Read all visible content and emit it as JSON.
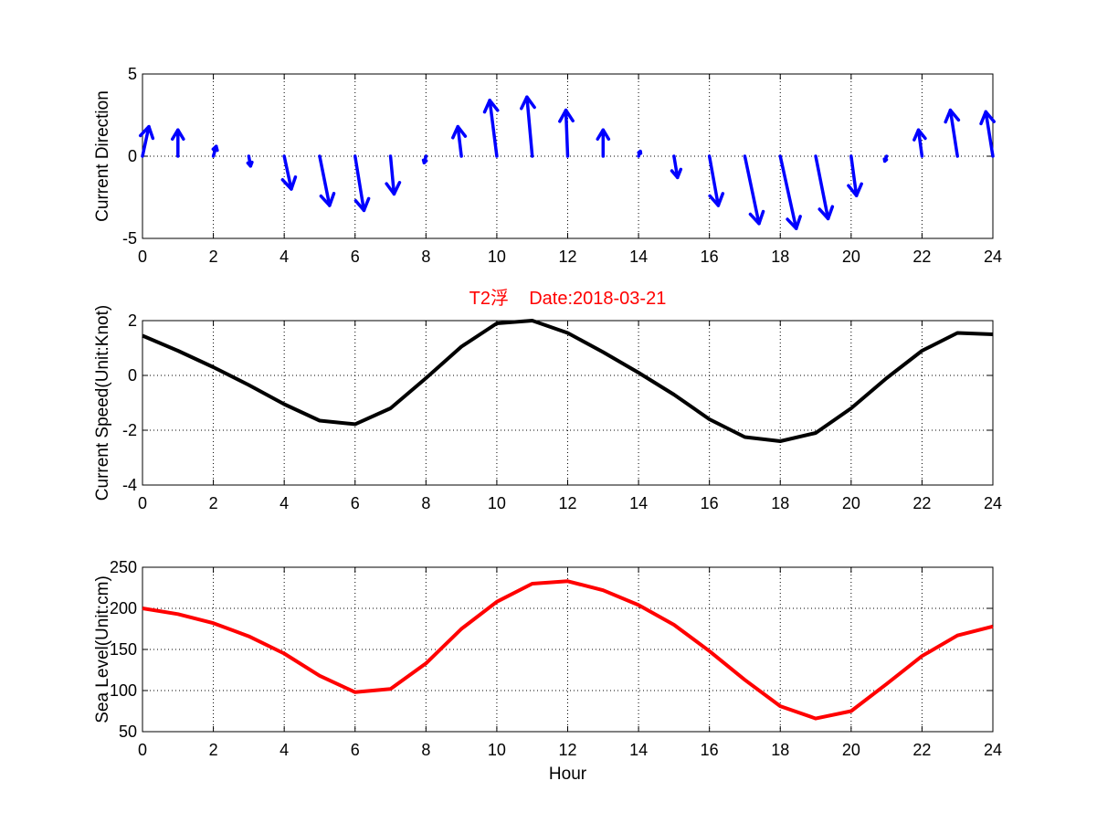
{
  "colors": {
    "direction": "#0000ff",
    "speed": "#000000",
    "sea_level": "#ff0000",
    "title": "#ff0000",
    "grid": "#000000"
  },
  "chart_data": [
    {
      "type": "quiver",
      "title": "",
      "xlabel": "",
      "ylabel": "Current Direction",
      "xlim": [
        0,
        24
      ],
      "ylim": [
        -5,
        5
      ],
      "xticks": [
        "0",
        "2",
        "4",
        "6",
        "8",
        "10",
        "12",
        "14",
        "16",
        "18",
        "20",
        "22",
        "24"
      ],
      "yticks": [
        "-5",
        "0",
        "5"
      ],
      "grid": true,
      "series": [
        {
          "x": [
            0,
            1,
            2,
            3,
            4,
            5,
            6,
            7,
            8,
            9,
            10,
            11,
            12,
            13,
            14,
            15,
            16,
            17,
            18,
            19,
            20,
            21,
            22,
            23,
            24
          ],
          "u": [
            0.18,
            0.0,
            0.08,
            0.05,
            0.2,
            0.28,
            0.25,
            0.1,
            -0.05,
            -0.1,
            -0.2,
            -0.15,
            -0.05,
            0.0,
            0.05,
            0.1,
            0.25,
            0.4,
            0.45,
            0.35,
            0.15,
            -0.05,
            -0.1,
            -0.2,
            -0.2
          ],
          "v": [
            1.8,
            1.6,
            0.6,
            -0.6,
            -2.0,
            -3.0,
            -3.3,
            -2.3,
            -0.4,
            1.8,
            3.4,
            3.6,
            2.8,
            1.6,
            0.3,
            -1.3,
            -3.0,
            -4.1,
            -4.4,
            -3.8,
            -2.4,
            -0.3,
            1.6,
            2.8,
            2.7
          ]
        }
      ]
    },
    {
      "type": "line",
      "title": "T2浮    Date:2018-03-21",
      "xlabel": "",
      "ylabel": "Current Speed(Unit:Knot)",
      "xlim": [
        0,
        24
      ],
      "ylim": [
        -4,
        2
      ],
      "xticks": [
        "0",
        "2",
        "4",
        "6",
        "8",
        "10",
        "12",
        "14",
        "16",
        "18",
        "20",
        "22",
        "24"
      ],
      "yticks": [
        "-4",
        "-2",
        "0",
        "2"
      ],
      "grid": true,
      "series": [
        {
          "x": [
            0,
            1,
            2,
            3,
            4,
            5,
            6,
            7,
            8,
            9,
            10,
            11,
            12,
            13,
            14,
            15,
            16,
            17,
            18,
            19,
            20,
            21,
            22,
            23,
            24
          ],
          "y": [
            1.45,
            0.9,
            0.3,
            -0.35,
            -1.05,
            -1.65,
            -1.78,
            -1.2,
            -0.1,
            1.05,
            1.9,
            2.0,
            1.55,
            0.85,
            0.1,
            -0.7,
            -1.6,
            -2.25,
            -2.4,
            -2.1,
            -1.2,
            -0.1,
            0.9,
            1.55,
            1.5
          ]
        }
      ]
    },
    {
      "type": "line",
      "title": "",
      "xlabel": "Hour",
      "ylabel": "Sea Level(Unit:cm)",
      "xlim": [
        0,
        24
      ],
      "ylim": [
        50,
        250
      ],
      "xticks": [
        "0",
        "2",
        "4",
        "6",
        "8",
        "10",
        "12",
        "14",
        "16",
        "18",
        "20",
        "22",
        "24"
      ],
      "yticks": [
        "50",
        "100",
        "150",
        "200",
        "250"
      ],
      "grid": true,
      "series": [
        {
          "x": [
            0,
            1,
            2,
            3,
            4,
            5,
            6,
            7,
            8,
            9,
            10,
            11,
            12,
            13,
            14,
            15,
            16,
            17,
            18,
            19,
            20,
            21,
            22,
            23,
            24
          ],
          "y": [
            200,
            193,
            182,
            166,
            145,
            118,
            98,
            102,
            133,
            175,
            208,
            230,
            233,
            222,
            204,
            180,
            148,
            113,
            81,
            66,
            75,
            108,
            142,
            167,
            178
          ]
        }
      ]
    }
  ]
}
